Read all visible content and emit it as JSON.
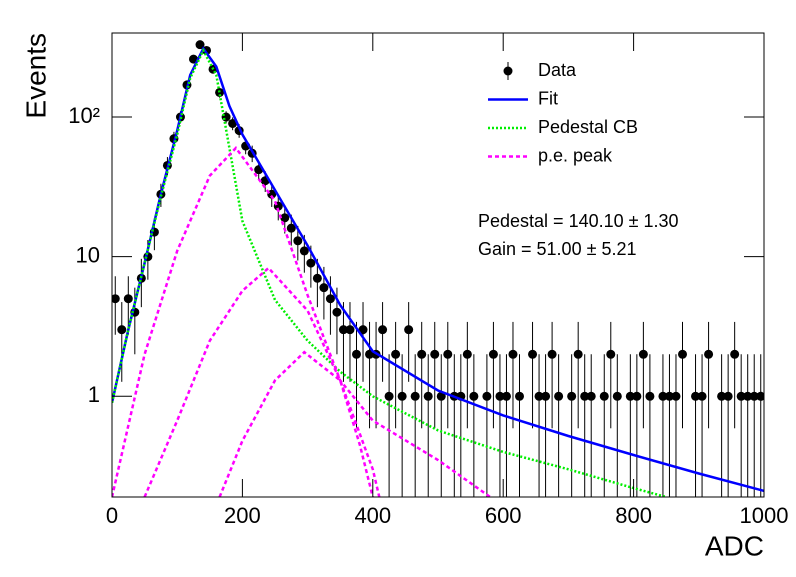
{
  "chart_data": {
    "type": "scatter",
    "xlabel": "ADC",
    "ylabel": "Events",
    "log_y": true,
    "xlim": [
      0,
      1000
    ],
    "ylim": [
      0.19,
      400
    ],
    "xticks": [
      0,
      200,
      400,
      600,
      800,
      1000
    ],
    "yticks": [
      1,
      10,
      {
        "value": 100,
        "label": "10²"
      }
    ],
    "legend": "top-right",
    "annotations": [
      "Pedestal = 140.10 ± 1.30",
      "Gain = 51.00 ± 5.21"
    ],
    "series": [
      {
        "name": "Data",
        "color": "#000000",
        "mark": "errorbar",
        "x": [
          5,
          15,
          25,
          35,
          45,
          55,
          65,
          75,
          85,
          95,
          105,
          115,
          125,
          135,
          145,
          155,
          165,
          175,
          185,
          195,
          205,
          215,
          225,
          235,
          245,
          255,
          265,
          275,
          285,
          295,
          305,
          315,
          325,
          335,
          345,
          355,
          365,
          375,
          385,
          395,
          405,
          415,
          425,
          435,
          445,
          455,
          465,
          475,
          485,
          495,
          505,
          515,
          525,
          535,
          545,
          555,
          565,
          575,
          585,
          595,
          605,
          615,
          625,
          635,
          645,
          655,
          665,
          675,
          685,
          695,
          705,
          715,
          725,
          735,
          745,
          755,
          765,
          775,
          785,
          795,
          805,
          815,
          825,
          835,
          845,
          855,
          865,
          875,
          885,
          895,
          905,
          915,
          925,
          935,
          945,
          955,
          965,
          975,
          985,
          995
        ],
        "values": [
          5,
          3,
          5,
          4,
          7,
          10,
          15,
          28,
          45,
          70,
          100,
          170,
          260,
          330,
          300,
          220,
          150,
          100,
          90,
          80,
          62,
          55,
          42,
          35,
          28,
          23,
          19,
          16,
          13,
          11,
          9,
          7,
          6,
          5,
          4,
          3,
          3,
          2,
          3,
          2,
          2,
          3,
          1,
          2,
          1,
          3,
          1,
          2,
          1,
          2,
          1,
          2,
          1,
          1,
          2,
          1,
          null,
          1,
          2,
          1,
          1,
          2,
          1,
          null,
          2,
          1,
          1,
          2,
          1,
          null,
          1,
          2,
          1,
          1,
          null,
          1,
          2,
          1,
          null,
          1,
          1,
          2,
          1,
          null,
          1,
          1,
          1,
          2,
          null,
          1,
          1,
          2,
          null,
          1,
          1,
          2,
          1,
          1,
          1,
          1
        ],
        "errors": [
          2.24,
          1.73,
          2.24,
          2,
          2.65,
          3.16,
          3.87,
          5.29,
          6.71,
          8.37,
          10,
          13.04,
          16.12,
          18.17,
          17.32,
          14.83,
          12.25,
          10,
          9.49,
          8.94,
          7.87,
          7.42,
          6.48,
          5.92,
          5.29,
          4.8,
          4.36,
          4,
          3.61,
          3.32,
          3,
          2.65,
          2.45,
          2.24,
          2,
          1.73,
          1.73,
          1.41,
          1.73,
          1.41,
          1.41,
          1.73,
          1,
          1.41,
          1,
          1.73,
          1,
          1.41,
          1,
          1.41,
          1,
          1.41,
          1,
          1,
          1.41,
          1,
          null,
          1,
          1.41,
          1,
          1,
          1.41,
          1,
          null,
          1.41,
          1,
          1,
          1.41,
          1,
          null,
          1,
          1.41,
          1,
          1,
          null,
          1,
          1.41,
          1,
          null,
          1,
          1,
          1.41,
          1,
          null,
          1,
          1,
          1,
          1.41,
          null,
          1,
          1,
          1.41,
          null,
          1,
          1,
          1.41,
          1,
          1,
          1,
          1
        ]
      },
      {
        "name": "Fit",
        "color": "#0000ff",
        "mark": "line",
        "pieces": [
          {
            "x": [
              0,
              25,
              50,
              75,
              100,
              120,
              140,
              160,
              180,
              200,
              250,
              300,
              350,
              400,
              500,
              600,
              700,
              800,
              900,
              1000
            ],
            "values": [
              0.9,
              3,
              9,
              28,
              80,
              200,
              310,
              230,
              120,
              75,
              30,
              12,
              4.5,
              2.1,
              1.1,
              0.73,
              0.52,
              0.38,
              0.28,
              0.21
            ]
          }
        ]
      },
      {
        "name": "Pedestal CB",
        "color": "#00ee00",
        "mark": "dotted",
        "pieces": [
          {
            "x": [
              0,
              25,
              50,
              75,
              100,
              120,
              140,
              160,
              180,
              200,
              250,
              300,
              350,
              400,
              500,
              600,
              700,
              800,
              850
            ],
            "values": [
              0.9,
              3,
              9,
              27,
              75,
              190,
              300,
              200,
              60,
              18,
              4.9,
              2.5,
              1.5,
              1,
              0.57,
              0.4,
              0.3,
              0.22,
              0.19
            ]
          }
        ]
      },
      {
        "name": "p.e. peak",
        "color": "#ff00ff",
        "mark": "dashed",
        "pieces": [
          {
            "x": [
              0,
              50,
              100,
              150,
              190,
              250,
              300,
              350,
              400,
              500,
              580
            ],
            "values": [
              0.19,
              2,
              11,
              38,
              60,
              25,
              5.3,
              1.3,
              0.67,
              0.35,
              0.19
            ]
          },
          {
            "x": [
              50,
              100,
              150,
              200,
              240,
              300,
              350,
              400,
              410
            ],
            "values": [
              0.19,
              0.67,
              2.5,
              5.7,
              8.3,
              4.1,
              1.3,
              0.3,
              0.19
            ]
          },
          {
            "x": [
              165,
              200,
              250,
              295,
              350,
              380,
              400
            ],
            "values": [
              0.19,
              0.48,
              1.3,
              2.07,
              1.3,
              0.45,
              0.19
            ]
          }
        ]
      }
    ]
  }
}
